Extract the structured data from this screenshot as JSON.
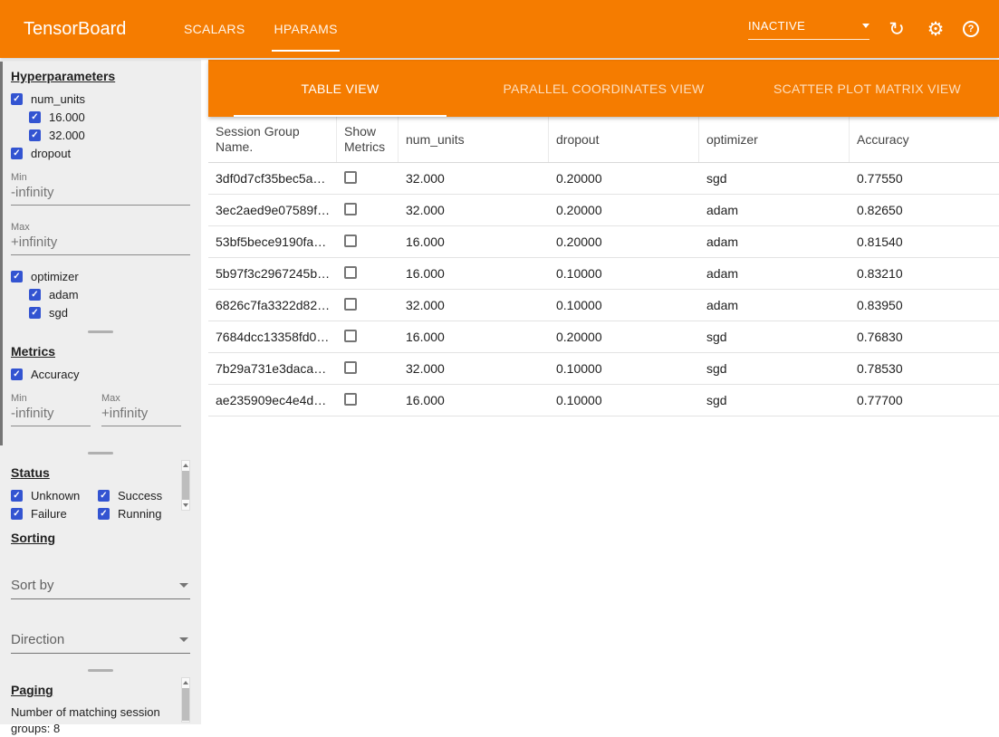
{
  "colors": {
    "orange": "#f57c00",
    "checkbox_blue": "#3354d1"
  },
  "topbar": {
    "title": "TensorBoard",
    "nav_tabs": [
      {
        "label": "SCALARS",
        "active": false
      },
      {
        "label": "HPARAMS",
        "active": true
      }
    ],
    "run_selector": {
      "value": "INACTIVE"
    },
    "icons": {
      "refresh_glyph": "↻",
      "settings_glyph": "⚙",
      "help_glyph": "?"
    }
  },
  "sidebar": {
    "hyperparameters": {
      "heading": "Hyperparameters",
      "num_units": {
        "label": "num_units",
        "checked": true,
        "values": [
          "16.000",
          "32.000"
        ]
      },
      "dropout": {
        "label": "dropout",
        "checked": true,
        "min_label": "Min",
        "min_placeholder": "-infinity",
        "max_label": "Max",
        "max_placeholder": "+infinity"
      },
      "optimizer": {
        "label": "optimizer",
        "checked": true,
        "values": [
          "adam",
          "sgd"
        ]
      }
    },
    "metrics": {
      "heading": "Metrics",
      "accuracy_label": "Accuracy",
      "min_label": "Min",
      "min_placeholder": "-infinity",
      "max_label": "Max",
      "max_placeholder": "+infinity"
    },
    "status": {
      "heading": "Status",
      "options": [
        "Unknown",
        "Success",
        "Failure",
        "Running"
      ]
    },
    "sorting": {
      "heading": "Sorting",
      "sort_by_placeholder": "Sort by",
      "direction_placeholder": "Direction"
    },
    "paging": {
      "heading": "Paging",
      "matching_text": "Number of matching session groups: 8"
    }
  },
  "main": {
    "view_tabs": [
      {
        "label": "TABLE VIEW",
        "active": true
      },
      {
        "label": "PARALLEL COORDINATES VIEW",
        "active": false
      },
      {
        "label": "SCATTER PLOT MATRIX VIEW",
        "active": false
      }
    ],
    "table": {
      "headers": [
        "Session Group Name.",
        "Show Metrics",
        "num_units",
        "dropout",
        "optimizer",
        "Accuracy"
      ],
      "rows": [
        {
          "name": "3df0d7cf35bec5a…",
          "num_units": "32.000",
          "dropout": "0.20000",
          "optimizer": "sgd",
          "accuracy": "0.77550"
        },
        {
          "name": "3ec2aed9e07589f…",
          "num_units": "32.000",
          "dropout": "0.20000",
          "optimizer": "adam",
          "accuracy": "0.82650"
        },
        {
          "name": "53bf5bece9190fa…",
          "num_units": "16.000",
          "dropout": "0.20000",
          "optimizer": "adam",
          "accuracy": "0.81540"
        },
        {
          "name": "5b97f3c2967245b…",
          "num_units": "16.000",
          "dropout": "0.10000",
          "optimizer": "adam",
          "accuracy": "0.83210"
        },
        {
          "name": "6826c7fa3322d82…",
          "num_units": "32.000",
          "dropout": "0.10000",
          "optimizer": "adam",
          "accuracy": "0.83950"
        },
        {
          "name": "7684dcc13358fd0…",
          "num_units": "16.000",
          "dropout": "0.20000",
          "optimizer": "sgd",
          "accuracy": "0.76830"
        },
        {
          "name": "7b29a731e3daca…",
          "num_units": "32.000",
          "dropout": "0.10000",
          "optimizer": "sgd",
          "accuracy": "0.78530"
        },
        {
          "name": "ae235909ec4e4d…",
          "num_units": "16.000",
          "dropout": "0.10000",
          "optimizer": "sgd",
          "accuracy": "0.77700"
        }
      ]
    }
  }
}
